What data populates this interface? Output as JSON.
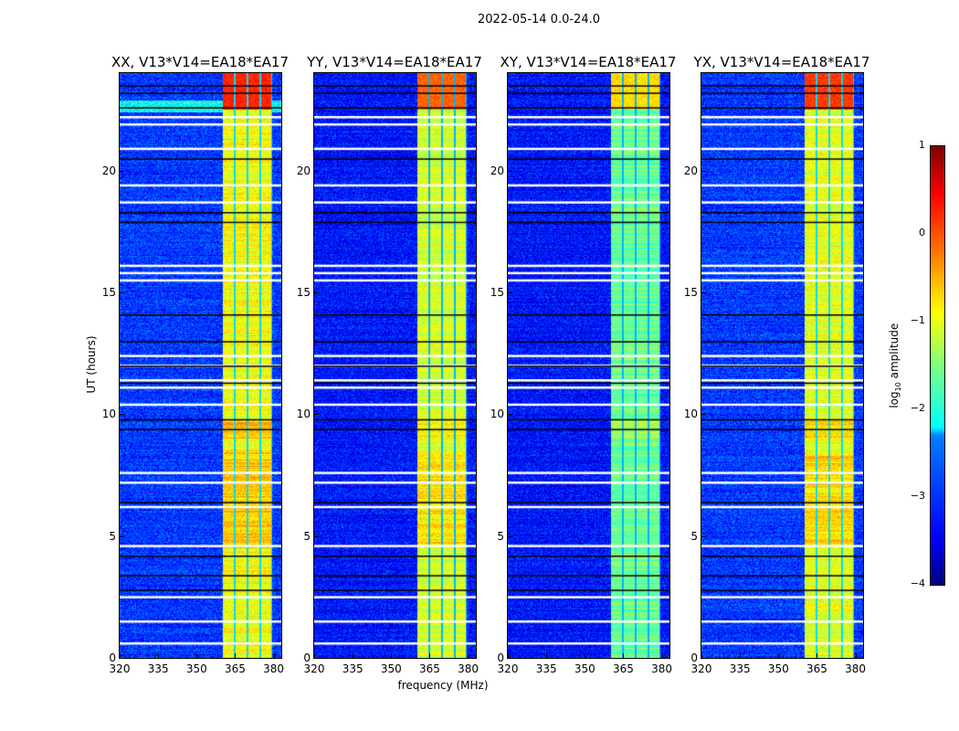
{
  "chart_data": {
    "type": "heatmap",
    "title": "2022-05-14 0.0-24.0",
    "xlabel": "frequency (MHz)",
    "ylabel": "UT (hours)",
    "xlim": [
      320,
      383
    ],
    "ylim": [
      0,
      24
    ],
    "xticks": [
      320,
      335,
      350,
      365,
      380
    ],
    "yticks": [
      0,
      5,
      10,
      15,
      20
    ],
    "colorbar": {
      "label_prefix": "log",
      "label_sub": "10",
      "label_suffix": " amplitude",
      "range": [
        -4,
        1
      ],
      "ticks": [
        1,
        0,
        -1,
        -2,
        -3,
        -4
      ],
      "tick_labels": [
        "1",
        "0",
        "−1",
        "−2",
        "−3",
        "−4"
      ],
      "colormap": "jet"
    },
    "signal_band_mhz": [
      360,
      379.3
    ],
    "subband_edges_mhz": [
      364.6,
      369.6,
      374.6
    ],
    "flagged_times_white_hours": [
      22.2,
      21.9,
      20.9,
      19.4,
      18.7,
      16.1,
      15.8,
      15.5,
      12.4,
      12.0,
      11.4,
      11.1,
      10.4,
      7.6,
      7.2,
      6.2,
      4.6,
      2.5,
      1.5,
      0.6
    ],
    "flagged_times_black_hours": [
      23.5,
      23.2,
      22.6,
      20.5,
      18.3,
      17.9,
      14.1,
      13.0,
      12.0,
      11.3,
      9.8,
      9.4,
      6.4,
      4.2,
      3.4,
      2.8
    ],
    "panels": [
      {
        "title": "XX, V13*V14=EA18*EA17",
        "background_log_amp": -3.1,
        "band_log_amp": -0.9,
        "peak_log_amp": 0.2
      },
      {
        "title": "YY, V13*V14=EA18*EA17",
        "background_log_amp": -3.3,
        "band_log_amp": -1.1,
        "peak_log_amp": -0.1
      },
      {
        "title": "XY, V13*V14=EA18*EA17",
        "background_log_amp": -3.3,
        "band_log_amp": -1.6,
        "peak_log_amp": -0.7
      },
      {
        "title": "YX, V13*V14=EA18*EA17",
        "background_log_amp": -3.1,
        "band_log_amp": -1.0,
        "peak_log_amp": 0.1
      }
    ]
  }
}
